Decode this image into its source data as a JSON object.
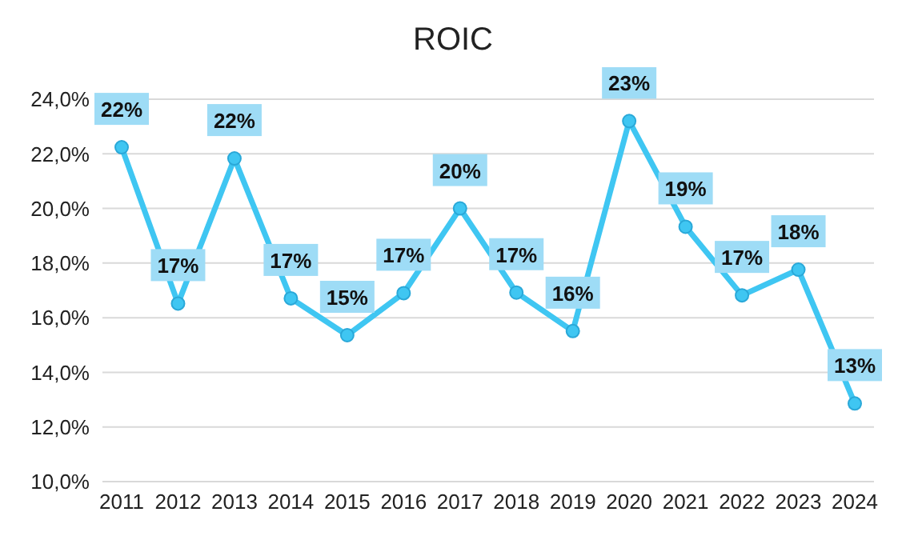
{
  "chart_data": {
    "type": "line",
    "title": "ROIC",
    "categories": [
      "2011",
      "2012",
      "2013",
      "2014",
      "2015",
      "2016",
      "2017",
      "2018",
      "2019",
      "2020",
      "2021",
      "2022",
      "2023",
      "2024"
    ],
    "series": [
      {
        "color": "#3fc6f2",
        "values": [
          22.24,
          16.52,
          21.83,
          16.71,
          15.36,
          16.9,
          20.0,
          16.92,
          15.51,
          23.2,
          19.33,
          16.82,
          17.76,
          12.86
        ],
        "value_labels": [
          "22%",
          "17%",
          "22%",
          "17%",
          "15%",
          "17%",
          "20%",
          "17%",
          "16%",
          "23%",
          "19%",
          "17%",
          "18%",
          "13%"
        ]
      }
    ],
    "ylim": [
      10,
      24
    ],
    "yticks": [
      {
        "value": 10,
        "label": "10,0%"
      },
      {
        "value": 12,
        "label": "12,0%"
      },
      {
        "value": 14,
        "label": "14,0%"
      },
      {
        "value": 16,
        "label": "16,0%"
      },
      {
        "value": 18,
        "label": "18,0%"
      },
      {
        "value": 20,
        "label": "20,0%"
      },
      {
        "value": 22,
        "label": "22,0%"
      },
      {
        "value": 24,
        "label": "24,0%"
      }
    ],
    "grid": "y",
    "legend": false,
    "marker": "circle",
    "line_style": "solid"
  }
}
